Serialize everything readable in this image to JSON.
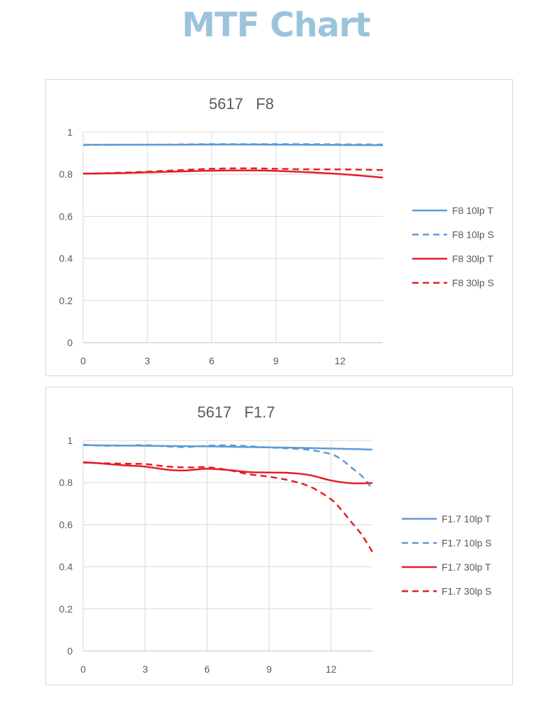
{
  "page": {
    "title": "MTF Chart"
  },
  "chart_data": [
    {
      "type": "line",
      "title": "5617   F8",
      "xlabel": "",
      "ylabel": "",
      "xlim": [
        0,
        14
      ],
      "ylim": [
        0,
        1
      ],
      "xticks": [
        0,
        3,
        6,
        9,
        12
      ],
      "yticks": [
        0,
        0.2,
        0.4,
        0.6,
        0.8,
        1
      ],
      "ytick_labels": [
        "0",
        "0.2",
        "0.4",
        "0.6",
        "0.8",
        "1"
      ],
      "grid": true,
      "legend_position": "right",
      "series": [
        {
          "name": "F8 10lp T",
          "color": "#5b9bd5",
          "dash": "solid",
          "x": [
            0,
            2,
            4,
            6,
            8,
            10,
            12,
            14
          ],
          "y": [
            0.94,
            0.94,
            0.94,
            0.941,
            0.941,
            0.94,
            0.939,
            0.938
          ]
        },
        {
          "name": "F8 10lp S",
          "color": "#5b9bd5",
          "dash": "dashed",
          "x": [
            0,
            2,
            4,
            6,
            8,
            10,
            12,
            14
          ],
          "y": [
            0.939,
            0.94,
            0.941,
            0.943,
            0.943,
            0.943,
            0.942,
            0.941
          ]
        },
        {
          "name": "F8 30lp T",
          "color": "#e41e26",
          "dash": "solid",
          "x": [
            0,
            1,
            2,
            3,
            4,
            5,
            6,
            7,
            8,
            9,
            10,
            11,
            12,
            13,
            14
          ],
          "y": [
            0.803,
            0.804,
            0.806,
            0.809,
            0.812,
            0.815,
            0.817,
            0.818,
            0.818,
            0.816,
            0.812,
            0.807,
            0.801,
            0.793,
            0.784
          ]
        },
        {
          "name": "F8 30lp S",
          "color": "#e41e26",
          "dash": "dashed",
          "x": [
            0,
            1,
            2,
            3,
            4,
            5,
            6,
            7,
            8,
            9,
            10,
            11,
            12,
            13,
            14
          ],
          "y": [
            0.803,
            0.805,
            0.808,
            0.812,
            0.817,
            0.822,
            0.826,
            0.828,
            0.828,
            0.826,
            0.824,
            0.823,
            0.823,
            0.822,
            0.82
          ]
        }
      ]
    },
    {
      "type": "line",
      "title": "5617   F1.7",
      "xlabel": "",
      "ylabel": "",
      "xlim": [
        0,
        14
      ],
      "ylim": [
        0,
        1
      ],
      "xticks": [
        0,
        3,
        6,
        9,
        12
      ],
      "yticks": [
        0,
        0.2,
        0.4,
        0.6,
        0.8,
        1
      ],
      "ytick_labels": [
        "0",
        "0.2",
        "0.4",
        "0.6",
        "0.8",
        "1"
      ],
      "grid": true,
      "legend_position": "right",
      "series": [
        {
          "name": "F1.7 10lp T",
          "color": "#5b9bd5",
          "dash": "solid",
          "x": [
            0,
            2,
            4,
            6,
            8,
            10,
            12,
            14
          ],
          "y": [
            0.978,
            0.976,
            0.974,
            0.972,
            0.969,
            0.966,
            0.962,
            0.957
          ]
        },
        {
          "name": "F1.7 10lp S",
          "color": "#5b9bd5",
          "dash": "dashed",
          "x": [
            0,
            1,
            2,
            3,
            4,
            5,
            6,
            7,
            8,
            9,
            10,
            11,
            12,
            12.5,
            13,
            13.5,
            14
          ],
          "y": [
            0.98,
            0.975,
            0.976,
            0.978,
            0.972,
            0.969,
            0.975,
            0.977,
            0.973,
            0.967,
            0.962,
            0.955,
            0.935,
            0.91,
            0.87,
            0.83,
            0.77
          ]
        },
        {
          "name": "F1.7 30lp T",
          "color": "#e41e26",
          "dash": "solid",
          "x": [
            0,
            1,
            2,
            3,
            4,
            4.5,
            5,
            6,
            7,
            8,
            9,
            10,
            11,
            12,
            13,
            14
          ],
          "y": [
            0.897,
            0.89,
            0.882,
            0.876,
            0.862,
            0.858,
            0.858,
            0.866,
            0.86,
            0.85,
            0.848,
            0.846,
            0.835,
            0.81,
            0.797,
            0.798
          ]
        },
        {
          "name": "F1.7 30lp S",
          "color": "#e41e26",
          "dash": "dashed",
          "x": [
            0,
            1,
            2,
            3,
            4,
            5,
            6,
            7,
            8,
            9,
            10,
            11,
            12,
            12.5,
            13,
            13.5,
            14
          ],
          "y": [
            0.895,
            0.892,
            0.89,
            0.888,
            0.877,
            0.872,
            0.873,
            0.86,
            0.84,
            0.828,
            0.81,
            0.78,
            0.72,
            0.67,
            0.61,
            0.55,
            0.47
          ]
        }
      ]
    }
  ]
}
